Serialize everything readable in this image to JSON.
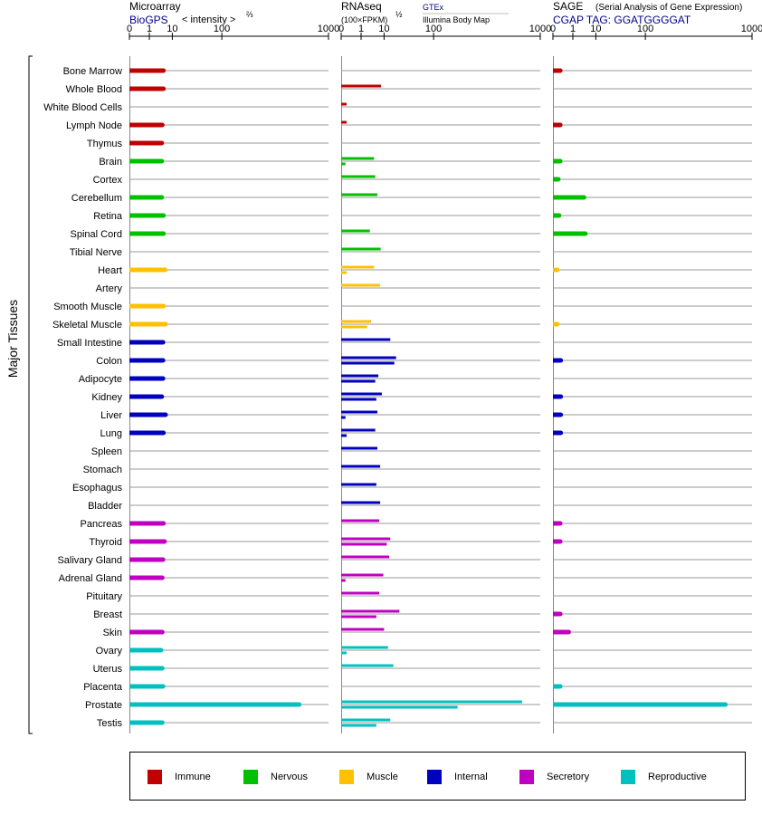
{
  "colors": {
    "Immune": "#c00000",
    "Nervous": "#00c000",
    "Muscle": "#ffc000",
    "Internal": "#0000c0",
    "Secretory": "#c000c0",
    "Reproductive": "#00c0c0"
  },
  "header": {
    "microarray": {
      "title": "Microarray",
      "subtitle": "BioGPS",
      "unit": "< intensity >",
      "unit_exp": "⅔"
    },
    "rnaseq": {
      "title": "RNAseq",
      "unit": "(100×FPKM)",
      "unit_exp": "½",
      "source_top": "GTEx",
      "source_bottom": "Illumina Body Map"
    },
    "sage": {
      "title": "SAGE",
      "title_note": "(Serial Analysis of Gene Expression)",
      "tag": "CGAP TAG: GGATGGGGAT"
    }
  },
  "y_axis_label": "Major Tissues",
  "legend": [
    {
      "label": "Immune",
      "color": "#c00000"
    },
    {
      "label": "Nervous",
      "color": "#00c000"
    },
    {
      "label": "Muscle",
      "color": "#ffc000"
    },
    {
      "label": "Internal",
      "color": "#0000c0"
    },
    {
      "label": "Secretory",
      "color": "#c000c0"
    },
    {
      "label": "Reproductive",
      "color": "#00c0c0"
    }
  ],
  "chart_data": {
    "type": "bar",
    "x_scale": "power",
    "tick_labels": [
      "0",
      "1",
      "10",
      "100",
      "1000"
    ],
    "ticks": [
      0,
      1,
      10,
      100,
      1000
    ],
    "xlim": [
      0,
      1000
    ],
    "panels": [
      "Microarray",
      "RNAseq",
      "SAGE"
    ],
    "tissues": [
      {
        "name": "Bone Marrow",
        "group": "Immune",
        "microarray": 5,
        "rnaseq": [],
        "sage": 0.05
      },
      {
        "name": "Whole Blood",
        "group": "Immune",
        "microarray": 5,
        "rnaseq": [
          8
        ],
        "sage": null
      },
      {
        "name": "White Blood Cells",
        "group": "Immune",
        "microarray": null,
        "rnaseq": [
          0.02
        ],
        "sage": null
      },
      {
        "name": "Lymph Node",
        "group": "Immune",
        "microarray": 4.5,
        "rnaseq": [
          0.02
        ],
        "sage": 0.05
      },
      {
        "name": "Thymus",
        "group": "Immune",
        "microarray": 4.3,
        "rnaseq": [],
        "sage": null
      },
      {
        "name": "Brain",
        "group": "Nervous",
        "microarray": 4.3,
        "rnaseq": [
          4.5,
          0.01
        ],
        "sage": 0.05
      },
      {
        "name": "Cortex",
        "group": "Nervous",
        "microarray": null,
        "rnaseq": [
          5
        ],
        "sage": 0.02
      },
      {
        "name": "Cerebellum",
        "group": "Nervous",
        "microarray": 4.3,
        "rnaseq": [
          6
        ],
        "sage": 3.8
      },
      {
        "name": "Retina",
        "group": "Nervous",
        "microarray": 5,
        "rnaseq": [],
        "sage": 0.03
      },
      {
        "name": "Spinal Cord",
        "group": "Nervous",
        "microarray": 5,
        "rnaseq": [
          3
        ],
        "sage": 4.3
      },
      {
        "name": "Tibial Nerve",
        "group": "Nervous",
        "microarray": null,
        "rnaseq": [
          7.8
        ],
        "sage": null
      },
      {
        "name": "Heart",
        "group": "Muscle",
        "microarray": 5.8,
        "rnaseq": [
          4.5,
          0.02
        ],
        "sage": 0.01
      },
      {
        "name": "Artery",
        "group": "Muscle",
        "microarray": null,
        "rnaseq": [
          7.5
        ],
        "sage": null
      },
      {
        "name": "Smooth Muscle",
        "group": "Muscle",
        "microarray": 5,
        "rnaseq": [],
        "sage": null
      },
      {
        "name": "Skeletal Muscle",
        "group": "Muscle",
        "microarray": 6,
        "rnaseq": [
          3.4,
          2.2
        ],
        "sage": 0.01
      },
      {
        "name": "Small Intestine",
        "group": "Internal",
        "microarray": 4.8,
        "rnaseq": [
          15
        ],
        "sage": null
      },
      {
        "name": "Colon",
        "group": "Internal",
        "microarray": 4.8,
        "rnaseq": [
          21,
          19
        ],
        "sage": 0.06
      },
      {
        "name": "Adipocyte",
        "group": "Internal",
        "microarray": 4.8,
        "rnaseq": [
          6.5,
          5
        ],
        "sage": null
      },
      {
        "name": "Kidney",
        "group": "Internal",
        "microarray": 4.3,
        "rnaseq": [
          8.5,
          5.5
        ],
        "sage": 0.06
      },
      {
        "name": "Liver",
        "group": "Internal",
        "microarray": 6,
        "rnaseq": [
          6,
          0.01
        ],
        "sage": 0.06
      },
      {
        "name": "Lung",
        "group": "Internal",
        "microarray": 5,
        "rnaseq": [
          5,
          0.02
        ],
        "sage": 0.06
      },
      {
        "name": "Spleen",
        "group": "Internal",
        "microarray": null,
        "rnaseq": [
          6
        ],
        "sage": null
      },
      {
        "name": "Stomach",
        "group": "Internal",
        "microarray": null,
        "rnaseq": [
          7.5
        ],
        "sage": null
      },
      {
        "name": "Esophagus",
        "group": "Internal",
        "microarray": null,
        "rnaseq": [
          5.5
        ],
        "sage": null
      },
      {
        "name": "Bladder",
        "group": "Internal",
        "microarray": null,
        "rnaseq": [
          7.5
        ],
        "sage": null
      },
      {
        "name": "Pancreas",
        "group": "Secretory",
        "microarray": 5,
        "rnaseq": [
          7
        ],
        "sage": 0.05
      },
      {
        "name": "Thyroid",
        "group": "Secretory",
        "microarray": 5.5,
        "rnaseq": [
          15,
          12
        ],
        "sage": 0.05
      },
      {
        "name": "Salivary Gland",
        "group": "Secretory",
        "microarray": 4.8,
        "rnaseq": [
          14
        ],
        "sage": null
      },
      {
        "name": "Adrenal Gland",
        "group": "Secretory",
        "microarray": 4.5,
        "rnaseq": [
          9.5,
          0.01
        ],
        "sage": null
      },
      {
        "name": "Pituitary",
        "group": "Secretory",
        "microarray": null,
        "rnaseq": [
          7
        ],
        "sage": null
      },
      {
        "name": "Breast",
        "group": "Secretory",
        "microarray": null,
        "rnaseq": [
          25,
          5.5
        ],
        "sage": 0.05
      },
      {
        "name": "Skin",
        "group": "Secretory",
        "microarray": 4.5,
        "rnaseq": [
          10
        ],
        "sage": 0.5
      },
      {
        "name": "Ovary",
        "group": "Reproductive",
        "microarray": 4,
        "rnaseq": [
          13,
          0.02
        ],
        "sage": null
      },
      {
        "name": "Uterus",
        "group": "Reproductive",
        "microarray": 4.5,
        "rnaseq": [
          18
        ],
        "sage": null
      },
      {
        "name": "Placenta",
        "group": "Reproductive",
        "microarray": 4.8,
        "rnaseq": [],
        "sage": 0.05
      },
      {
        "name": "Prostate",
        "group": "Reproductive",
        "microarray": 620,
        "rnaseq": [
          750,
          200
        ],
        "sage": 650
      },
      {
        "name": "Testis",
        "group": "Reproductive",
        "microarray": 4.5,
        "rnaseq": [
          15,
          5.5
        ],
        "sage": null
      }
    ]
  }
}
